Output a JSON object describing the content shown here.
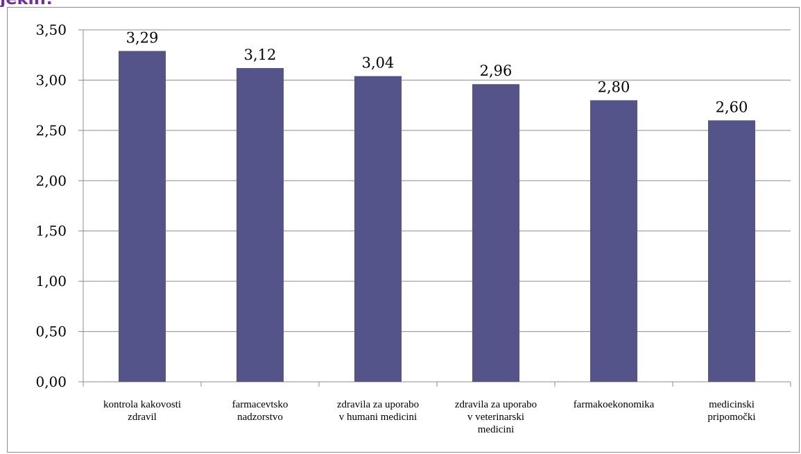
{
  "header": {
    "text_fragment": "jekih!"
  },
  "colors": {
    "bar": "#55548a",
    "grid": "#8c8c8c",
    "frame": "#8c8c8c",
    "header_accent": "#7030a0"
  },
  "chart_data": {
    "type": "bar",
    "title": "",
    "xlabel": "",
    "ylabel": "",
    "ylim": [
      0,
      3.5
    ],
    "y_ticks": [
      "0,00",
      "0,50",
      "1,00",
      "1,50",
      "2,00",
      "2,50",
      "3,00",
      "3,50"
    ],
    "grid": true,
    "legend": "none",
    "categories": [
      [
        "kontrola kakovosti",
        "zdravil"
      ],
      [
        "farmacevtsko",
        "nadzorstvo"
      ],
      [
        "zdravila za uporabo",
        "v humani medicini"
      ],
      [
        "zdravila za uporabo",
        "v veterinarski",
        "medicini"
      ],
      [
        "farmakoekonomika"
      ],
      [
        "medicinski",
        "pripomočki"
      ]
    ],
    "values": [
      3.29,
      3.12,
      3.04,
      2.96,
      2.8,
      2.6
    ],
    "data_labels": [
      "3,29",
      "3,12",
      "3,04",
      "2,96",
      "2,80",
      "2,60"
    ]
  }
}
